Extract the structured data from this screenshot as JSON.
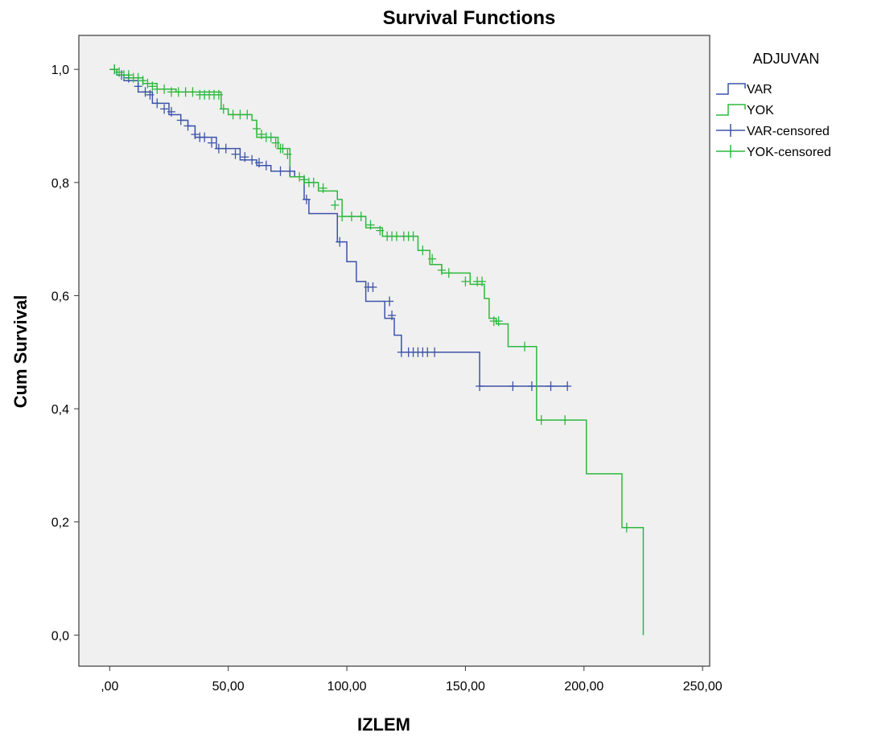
{
  "chart_data": {
    "type": "line",
    "title": "Survival Functions",
    "xlabel": "IZLEM",
    "ylabel": "Cum Survival",
    "xlim": [
      -13,
      253
    ],
    "ylim": [
      -0.055,
      1.06
    ],
    "x_ticks": [
      0,
      50,
      100,
      150,
      200,
      250
    ],
    "x_tick_labels": [
      ",00",
      "50,00",
      "100,00",
      "150,00",
      "200,00",
      "250,00"
    ],
    "y_ticks": [
      0,
      0.2,
      0.4,
      0.6,
      0.8,
      1.0
    ],
    "y_tick_labels": [
      "0,0",
      "0,2",
      "0,4",
      "0,6",
      "0,8",
      "1,0"
    ],
    "grid": false,
    "legend": {
      "title": "ADJUVAN",
      "placement": "right",
      "entries": [
        "VAR",
        "YOK",
        "VAR-censored",
        "YOK-censored"
      ]
    },
    "colors": {
      "VAR": "#3d53a8",
      "YOK": "#2db83d",
      "plot_background": "#f0f0f0"
    },
    "series": [
      {
        "name": "VAR",
        "step": true,
        "x": [
          0,
          3,
          6,
          12,
          18,
          25,
          30,
          33,
          36,
          45,
          55,
          62,
          68,
          78,
          82,
          84,
          96,
          100,
          104,
          108,
          116,
          120,
          123,
          156,
          193
        ],
        "y": [
          1.0,
          0.99,
          0.98,
          0.96,
          0.94,
          0.92,
          0.91,
          0.9,
          0.88,
          0.86,
          0.84,
          0.83,
          0.82,
          0.81,
          0.77,
          0.745,
          0.695,
          0.66,
          0.625,
          0.59,
          0.56,
          0.53,
          0.5,
          0.44,
          0.44
        ]
      },
      {
        "name": "YOK",
        "step": true,
        "x": [
          0,
          3,
          8,
          14,
          20,
          28,
          47,
          50,
          60,
          62,
          71,
          76,
          82,
          88,
          96,
          98,
          108,
          115,
          130,
          135,
          140,
          152,
          158,
          160,
          163,
          168,
          180,
          201,
          216,
          225
        ],
        "y": [
          1.0,
          0.99,
          0.985,
          0.975,
          0.965,
          0.96,
          0.93,
          0.92,
          0.91,
          0.88,
          0.86,
          0.81,
          0.8,
          0.785,
          0.77,
          0.74,
          0.72,
          0.705,
          0.68,
          0.655,
          0.64,
          0.62,
          0.595,
          0.56,
          0.55,
          0.51,
          0.38,
          0.285,
          0.19,
          0.0
        ]
      }
    ],
    "censored": [
      {
        "name": "VAR-censored",
        "x": [
          2,
          5,
          8,
          12,
          15,
          17,
          20,
          23,
          26,
          30,
          33,
          36,
          38,
          40,
          43,
          46,
          49,
          53,
          57,
          60,
          63,
          66,
          72,
          76,
          83,
          97,
          109,
          111,
          118,
          119,
          123,
          126,
          128,
          130,
          132,
          134,
          137,
          156,
          170,
          178,
          186,
          193
        ],
        "y": [
          1.0,
          0.99,
          0.985,
          0.97,
          0.96,
          0.955,
          0.94,
          0.93,
          0.925,
          0.91,
          0.9,
          0.885,
          0.88,
          0.88,
          0.87,
          0.86,
          0.86,
          0.85,
          0.845,
          0.84,
          0.835,
          0.83,
          0.82,
          0.82,
          0.77,
          0.695,
          0.615,
          0.615,
          0.59,
          0.565,
          0.5,
          0.5,
          0.5,
          0.5,
          0.5,
          0.5,
          0.5,
          0.44,
          0.44,
          0.44,
          0.44,
          0.44
        ]
      },
      {
        "name": "YOK-censored",
        "x": [
          2,
          4,
          6,
          8,
          10,
          12,
          14,
          16,
          18,
          20,
          23,
          26,
          29,
          32,
          35,
          38,
          40,
          42,
          44,
          46,
          48,
          52,
          55,
          58,
          62,
          64,
          66,
          68,
          70,
          72,
          73,
          75,
          80,
          82,
          84,
          86,
          90,
          95,
          98,
          102,
          106,
          110,
          114,
          117,
          119,
          121,
          124,
          126,
          128,
          132,
          136,
          140,
          143,
          150,
          155,
          157,
          162,
          164,
          175,
          182,
          192,
          218
        ],
        "y": [
          1.0,
          0.995,
          0.99,
          0.99,
          0.985,
          0.985,
          0.98,
          0.975,
          0.97,
          0.965,
          0.965,
          0.96,
          0.96,
          0.96,
          0.96,
          0.955,
          0.955,
          0.955,
          0.955,
          0.955,
          0.93,
          0.92,
          0.92,
          0.92,
          0.895,
          0.885,
          0.88,
          0.88,
          0.87,
          0.86,
          0.86,
          0.85,
          0.81,
          0.805,
          0.8,
          0.8,
          0.79,
          0.76,
          0.74,
          0.74,
          0.74,
          0.725,
          0.715,
          0.705,
          0.705,
          0.705,
          0.705,
          0.705,
          0.705,
          0.68,
          0.665,
          0.645,
          0.64,
          0.625,
          0.625,
          0.625,
          0.555,
          0.555,
          0.51,
          0.38,
          0.38,
          0.19
        ]
      }
    ]
  }
}
